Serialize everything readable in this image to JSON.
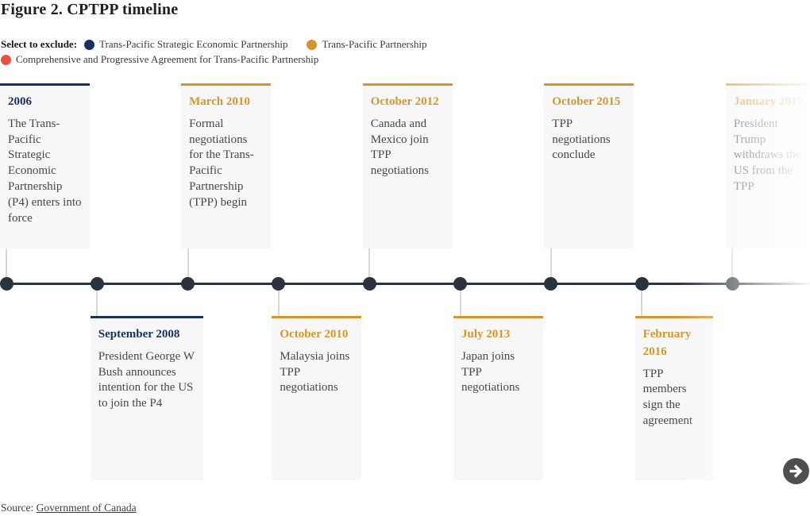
{
  "header": {
    "title": "Figure 2. CPTPP timeline"
  },
  "legend": {
    "label": "Select to exclude:",
    "items": [
      {
        "label": "Trans-Pacific Strategic Economic Partnership",
        "color": "#1a3160"
      },
      {
        "label": "Trans-Pacific Partnership",
        "color": "#d6952a"
      },
      {
        "label": "Comprehensive and Progressive Agreement for Trans-Pacific Partnership",
        "color": "#e8523f"
      }
    ]
  },
  "controls": {
    "next_button": "next"
  },
  "source": {
    "label": "Source:",
    "link": "Government of Canada"
  },
  "chart_data": {
    "type": "timeline",
    "title": "Figure 2. CPTPP timeline",
    "legend_position": "top",
    "series": [
      "Trans-Pacific Strategic Economic Partnership",
      "Trans-Pacific Partnership",
      "Comprehensive and Progressive Agreement for Trans-Pacific Partnership"
    ],
    "events": [
      {
        "date": "2006",
        "description": "The Trans-Pacific Strategic Economic Partnership (P4) enters into force",
        "series": "Trans-Pacific Strategic Economic Partnership",
        "position": "above",
        "faded": false
      },
      {
        "date": "September 2008",
        "description": "President George W Bush announces intention for the US to join the P4",
        "series": "Trans-Pacific Strategic Economic Partnership",
        "position": "below",
        "faded": false
      },
      {
        "date": "March 2010",
        "description": "Formal negotiations for the Trans-Pacific Partnership (TPP) begin",
        "series": "Trans-Pacific Partnership",
        "position": "above",
        "faded": false
      },
      {
        "date": "October 2010",
        "description": "Malaysia joins TPP negotiations",
        "series": "Trans-Pacific Partnership",
        "position": "below",
        "faded": false
      },
      {
        "date": "October 2012",
        "description": "Canada and Mexico join TPP negotiations",
        "series": "Trans-Pacific Partnership",
        "position": "above",
        "faded": false
      },
      {
        "date": "July 2013",
        "description": "Japan joins TPP negotiations",
        "series": "Trans-Pacific Partnership",
        "position": "below",
        "faded": false
      },
      {
        "date": "October 2015",
        "description": "TPP negotiations conclude",
        "series": "Trans-Pacific Partnership",
        "position": "above",
        "faded": false
      },
      {
        "date": "February 2016",
        "description": "TPP members sign the agreement",
        "series": "Trans-Pacific Partnership",
        "position": "below",
        "faded": false
      },
      {
        "date": "January 2017",
        "description": "President Trump withdraws the US from the TPP",
        "series": "Trans-Pacific Partnership",
        "position": "above",
        "faded": true
      }
    ],
    "source": "Government of Canada"
  }
}
